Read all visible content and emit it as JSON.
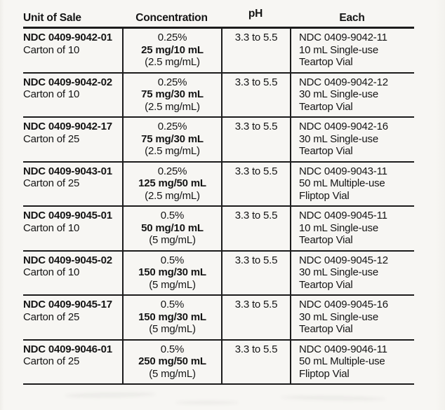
{
  "colors": {
    "paper": "#f7f6f3",
    "ink": "#151515",
    "rule_line": "#1c1c1c"
  },
  "table": {
    "headers": [
      "Unit of Sale",
      "Concentration",
      "pH",
      "Each"
    ],
    "rows": [
      {
        "unit_ndc": "NDC 0409-9042-01",
        "unit_pack": "Carton of 10",
        "conc_percent": "0.25%",
        "conc_amount": "25 mg/10 mL",
        "conc_per_ml": "(2.5 mg/mL)",
        "ph": "3.3 to 5.5",
        "each_ndc": "NDC 0409-9042-11",
        "each_container": "10 mL Single-use",
        "each_vial": "Teartop Vial"
      },
      {
        "unit_ndc": "NDC 0409-9042-02",
        "unit_pack": "Carton of 10",
        "conc_percent": "0.25%",
        "conc_amount": "75 mg/30 mL",
        "conc_per_ml": "(2.5 mg/mL)",
        "ph": "3.3 to 5.5",
        "each_ndc": "NDC 0409-9042-12",
        "each_container": "30 mL Single-use",
        "each_vial": "Teartop Vial"
      },
      {
        "unit_ndc": "NDC 0409-9042-17",
        "unit_pack": "Carton of 25",
        "conc_percent": "0.25%",
        "conc_amount": "75 mg/30 mL",
        "conc_per_ml": "(2.5 mg/mL)",
        "ph": "3.3 to 5.5",
        "each_ndc": "NDC 0409-9042-16",
        "each_container": "30 mL Single-use",
        "each_vial": "Teartop Vial"
      },
      {
        "unit_ndc": "NDC 0409-9043-01",
        "unit_pack": "Carton of 25",
        "conc_percent": "0.25%",
        "conc_amount": "125 mg/50 mL",
        "conc_per_ml": "(2.5 mg/mL)",
        "ph": "3.3 to 5.5",
        "each_ndc": "NDC 0409-9043-11",
        "each_container": "50 mL Multiple-use",
        "each_vial": "Fliptop Vial"
      },
      {
        "unit_ndc": "NDC 0409-9045-01",
        "unit_pack": "Carton of 10",
        "conc_percent": "0.5%",
        "conc_amount": "50 mg/10 mL",
        "conc_per_ml": "(5 mg/mL)",
        "ph": "3.3 to 5.5",
        "each_ndc": "NDC 0409-9045-11",
        "each_container": "10 mL Single-use",
        "each_vial": "Teartop Vial"
      },
      {
        "unit_ndc": "NDC 0409-9045-02",
        "unit_pack": "Carton of 10",
        "conc_percent": "0.5%",
        "conc_amount": "150 mg/30 mL",
        "conc_per_ml": "(5 mg/mL)",
        "ph": "3.3 to 5.5",
        "each_ndc": "NDC 0409-9045-12",
        "each_container": "30 mL Single-use",
        "each_vial": "Teartop Vial"
      },
      {
        "unit_ndc": "NDC 0409-9045-17",
        "unit_pack": "Carton of 25",
        "conc_percent": "0.5%",
        "conc_amount": "150 mg/30 mL",
        "conc_per_ml": "(5 mg/mL)",
        "ph": "3.3 to 5.5",
        "each_ndc": "NDC 0409-9045-16",
        "each_container": "30 mL Single-use",
        "each_vial": "Teartop Vial"
      },
      {
        "unit_ndc": "NDC 0409-9046-01",
        "unit_pack": "Carton of 25",
        "conc_percent": "0.5%",
        "conc_amount": "250 mg/50 mL",
        "conc_per_ml": "(5 mg/mL)",
        "ph": "3.3 to 5.5",
        "each_ndc": "NDC 0409-9046-11",
        "each_container": "50 mL Multiple-use",
        "each_vial": "Fliptop Vial"
      }
    ]
  }
}
